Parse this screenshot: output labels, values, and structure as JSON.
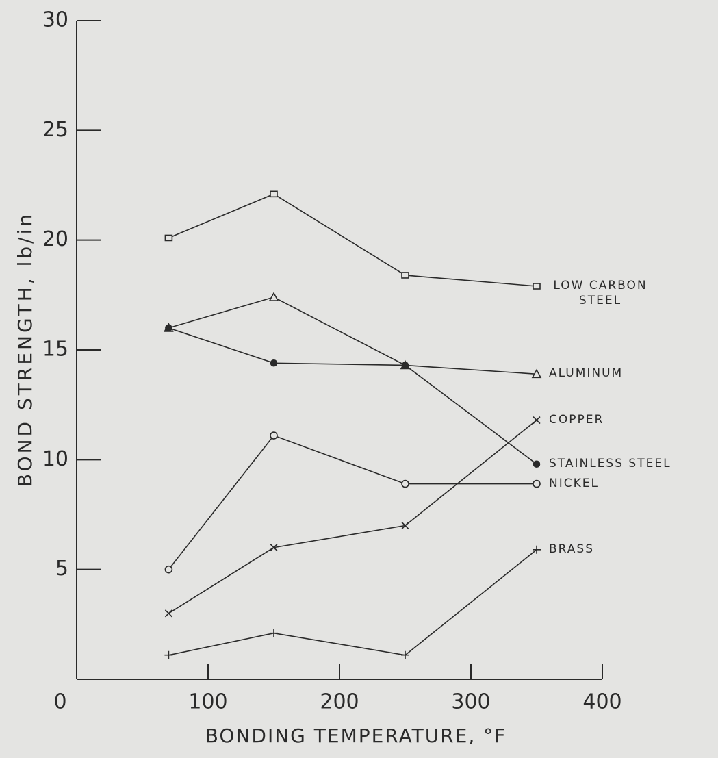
{
  "chart_data": {
    "type": "line",
    "x_label": "BONDING TEMPERATURE, °F",
    "y_label": "BOND STRENGTH, lb/in",
    "x": [
      70,
      150,
      250,
      350
    ],
    "xlim": [
      0,
      400
    ],
    "xticks": [
      0,
      100,
      200,
      300,
      400
    ],
    "ylim": [
      0,
      30
    ],
    "yticks": [
      5,
      10,
      15,
      20,
      25,
      30
    ],
    "grid": false,
    "series": [
      {
        "name": "LOW CARBON STEEL",
        "marker": "square",
        "color": "#2a2a2a",
        "values": [
          20.1,
          22.1,
          18.4,
          17.9
        ]
      },
      {
        "name": "ALUMINUM",
        "marker": "triangle",
        "color": "#2a2a2a",
        "values": [
          16,
          17.4,
          14.3,
          13.9
        ]
      },
      {
        "name": "COPPER",
        "marker": "x",
        "color": "#2a2a2a",
        "values": [
          3.0,
          6.0,
          7.0,
          11.8
        ]
      },
      {
        "name": "STAINLESS STEEL",
        "marker": "dot",
        "color": "#2a2a2a",
        "values": [
          16,
          14.4,
          14.3,
          9.8
        ]
      },
      {
        "name": "NICKEL",
        "marker": "circle",
        "color": "#2a2a2a",
        "values": [
          5.0,
          11.1,
          8.9,
          8.9
        ]
      },
      {
        "name": "BRASS",
        "marker": "plus",
        "color": "#2a2a2a",
        "values": [
          1.1,
          2.1,
          1.1,
          5.9
        ]
      }
    ]
  }
}
